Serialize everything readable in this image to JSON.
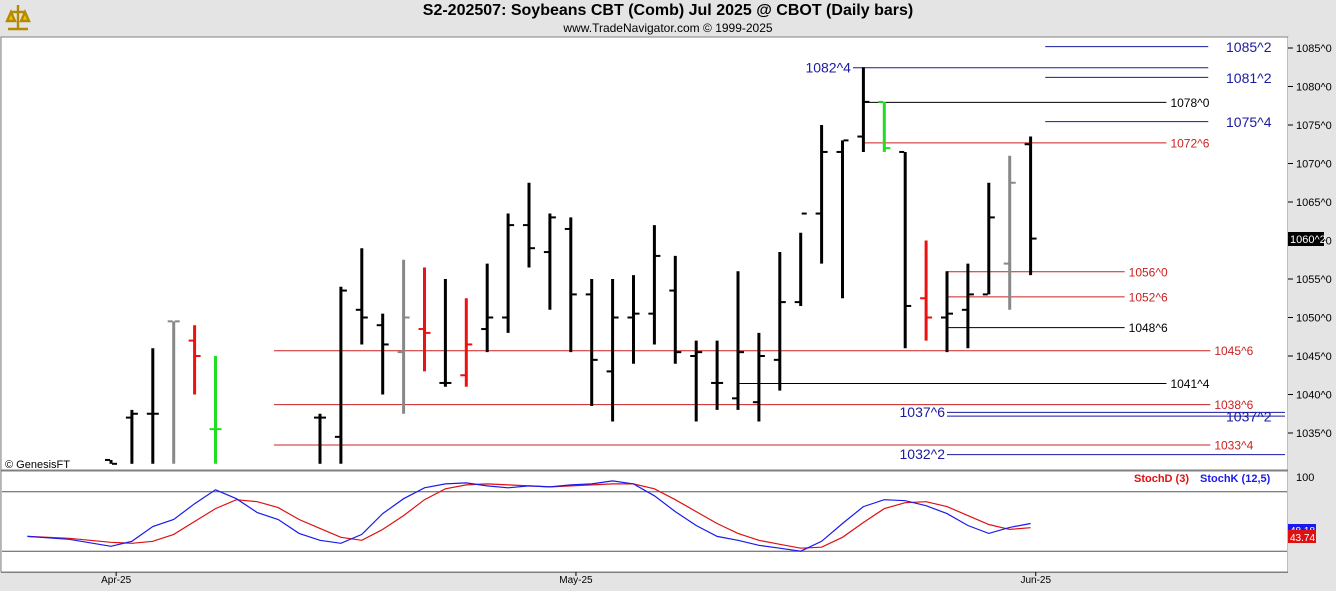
{
  "header": {
    "title": "S2-202507:  Soybeans CBT (Comb) Jul 2025 @ CBOT  (Daily bars)",
    "subtitle": "www.TradeNavigator.com © 1999-2025"
  },
  "colors": {
    "up_bar": "#000000",
    "green_bar": "#22dd22",
    "red_bar": "#ee1111",
    "gray_bar": "#888888",
    "blue_level": "#1a1aa0",
    "red_level": "#cc2020",
    "black_level": "#000000",
    "stoch_d": "#dd1111",
    "stoch_k": "#1a1aee"
  },
  "chart_data": {
    "type": "ohlc",
    "price_axis": {
      "min": 1030.0,
      "max": 1087.0,
      "ticks": [
        {
          "value": 1085.0,
          "label": "1085^0"
        },
        {
          "value": 1080.0,
          "label": "1080^0"
        },
        {
          "value": 1075.0,
          "label": "1075^0"
        },
        {
          "value": 1070.0,
          "label": "1070^0"
        },
        {
          "value": 1065.0,
          "label": "1065^0"
        },
        {
          "value": 1060.0,
          "label": "1060^0"
        },
        {
          "value": 1055.0,
          "label": "1055^0"
        },
        {
          "value": 1050.0,
          "label": "1050^0"
        },
        {
          "value": 1045.0,
          "label": "1045^0"
        },
        {
          "value": 1040.0,
          "label": "1040^0"
        },
        {
          "value": 1035.0,
          "label": "1035^0"
        }
      ],
      "last_price_label": "1060^2",
      "last_price": 1060.25
    },
    "x_labels": [
      {
        "index": 3.5,
        "label": "Apr-25"
      },
      {
        "index": 25.5,
        "label": "May-25"
      },
      {
        "index": 47.5,
        "label": "Jun-25"
      }
    ],
    "bars": [
      {
        "i": 0,
        "o": 1031.5,
        "h": 1031.5,
        "l": 1031.0,
        "c": 1031.0,
        "color": "black"
      },
      {
        "i": 1,
        "o": 1037.0,
        "h": 1038.0,
        "l": 1031.0,
        "c": 1037.5,
        "color": "black"
      },
      {
        "i": 2,
        "o": 1037.5,
        "h": 1046.0,
        "l": 1031.0,
        "c": 1037.5,
        "color": "black"
      },
      {
        "i": 3,
        "o": 1049.5,
        "h": 1049.5,
        "l": 1031.0,
        "c": 1049.5,
        "color": "gray"
      },
      {
        "i": 4,
        "o": 1047.0,
        "h": 1049.0,
        "l": 1040.0,
        "c": 1045.0,
        "color": "red"
      },
      {
        "i": 5,
        "o": 1035.5,
        "h": 1045.0,
        "l": 1031.0,
        "c": 1035.5,
        "color": "green"
      },
      {
        "i": 10,
        "o": 1037.0,
        "h": 1037.5,
        "l": 1031.0,
        "c": 1037.0,
        "color": "black"
      },
      {
        "i": 11,
        "o": 1034.5,
        "h": 1054.0,
        "l": 1031.0,
        "c": 1053.5,
        "color": "black"
      },
      {
        "i": 12,
        "o": 1051.0,
        "h": 1059.0,
        "l": 1046.5,
        "c": 1050.0,
        "color": "black"
      },
      {
        "i": 13,
        "o": 1049.0,
        "h": 1050.5,
        "l": 1040.0,
        "c": 1046.5,
        "color": "black"
      },
      {
        "i": 14,
        "o": 1045.5,
        "h": 1057.5,
        "l": 1037.5,
        "c": 1050.0,
        "color": "gray"
      },
      {
        "i": 15,
        "o": 1048.5,
        "h": 1056.5,
        "l": 1043.0,
        "c": 1048.0,
        "color": "red"
      },
      {
        "i": 16,
        "o": 1041.5,
        "h": 1055.0,
        "l": 1041.0,
        "c": 1041.5,
        "color": "black"
      },
      {
        "i": 17,
        "o": 1042.5,
        "h": 1052.5,
        "l": 1041.0,
        "c": 1046.5,
        "color": "red"
      },
      {
        "i": 18,
        "o": 1048.5,
        "h": 1057.0,
        "l": 1045.5,
        "c": 1050.0,
        "color": "black"
      },
      {
        "i": 19,
        "o": 1050.0,
        "h": 1063.5,
        "l": 1048.0,
        "c": 1062.0,
        "color": "black"
      },
      {
        "i": 20,
        "o": 1062.0,
        "h": 1067.5,
        "l": 1056.5,
        "c": 1059.0,
        "color": "black"
      },
      {
        "i": 21,
        "o": 1058.5,
        "h": 1063.5,
        "l": 1051.0,
        "c": 1063.0,
        "color": "black"
      },
      {
        "i": 22,
        "o": 1061.5,
        "h": 1063.0,
        "l": 1045.5,
        "c": 1053.0,
        "color": "black"
      },
      {
        "i": 23,
        "o": 1053.0,
        "h": 1055.0,
        "l": 1038.5,
        "c": 1044.5,
        "color": "black"
      },
      {
        "i": 24,
        "o": 1043.0,
        "h": 1055.0,
        "l": 1036.5,
        "c": 1050.0,
        "color": "black"
      },
      {
        "i": 25,
        "o": 1050.0,
        "h": 1055.5,
        "l": 1044.0,
        "c": 1050.5,
        "color": "black"
      },
      {
        "i": 26,
        "o": 1050.5,
        "h": 1062.0,
        "l": 1046.5,
        "c": 1058.0,
        "color": "black"
      },
      {
        "i": 27,
        "o": 1053.5,
        "h": 1058.0,
        "l": 1044.0,
        "c": 1045.5,
        "color": "black"
      },
      {
        "i": 28,
        "o": 1045.0,
        "h": 1047.0,
        "l": 1036.5,
        "c": 1045.5,
        "color": "black"
      },
      {
        "i": 29,
        "o": 1041.5,
        "h": 1047.0,
        "l": 1038.0,
        "c": 1041.5,
        "color": "black"
      },
      {
        "i": 30,
        "o": 1039.5,
        "h": 1056.0,
        "l": 1038.0,
        "c": 1045.5,
        "color": "black"
      },
      {
        "i": 31,
        "o": 1039.0,
        "h": 1048.0,
        "l": 1036.5,
        "c": 1045.0,
        "color": "black"
      },
      {
        "i": 32,
        "o": 1044.5,
        "h": 1058.5,
        "l": 1040.5,
        "c": 1052.0,
        "color": "black"
      },
      {
        "i": 33,
        "o": 1052.0,
        "h": 1061.0,
        "l": 1051.5,
        "c": 1063.5,
        "color": "black"
      },
      {
        "i": 34,
        "o": 1063.5,
        "h": 1075.0,
        "l": 1057.0,
        "c": 1071.5,
        "color": "black"
      },
      {
        "i": 35,
        "o": 1071.5,
        "h": 1073.0,
        "l": 1052.5,
        "c": 1073.0,
        "color": "black"
      },
      {
        "i": 36,
        "o": 1073.5,
        "h": 1082.5,
        "l": 1071.5,
        "c": 1078.0,
        "color": "black"
      },
      {
        "i": 37,
        "o": 1078.0,
        "h": 1078.0,
        "l": 1071.5,
        "c": 1072.0,
        "color": "green"
      },
      {
        "i": 38,
        "o": 1071.5,
        "h": 1071.5,
        "l": 1046.0,
        "c": 1051.5,
        "color": "black"
      },
      {
        "i": 39,
        "o": 1052.5,
        "h": 1060.0,
        "l": 1047.0,
        "c": 1050.0,
        "color": "red"
      },
      {
        "i": 40,
        "o": 1050.0,
        "h": 1056.0,
        "l": 1045.5,
        "c": 1050.5,
        "color": "black"
      },
      {
        "i": 41,
        "o": 1051.0,
        "h": 1057.0,
        "l": 1046.0,
        "c": 1053.0,
        "color": "black"
      },
      {
        "i": 42,
        "o": 1053.0,
        "h": 1067.5,
        "l": 1053.0,
        "c": 1063.0,
        "color": "black"
      },
      {
        "i": 43,
        "o": 1057.0,
        "h": 1071.0,
        "l": 1051.0,
        "c": 1067.5,
        "color": "gray"
      },
      {
        "i": 44,
        "o": 1072.5,
        "h": 1073.5,
        "l": 1055.5,
        "c": 1060.25,
        "color": "black"
      }
    ],
    "levels": [
      {
        "value": 1085.25,
        "label": "1085^2",
        "color": "blue",
        "x0": 44.7,
        "x1": 52.5,
        "label_side": "right-far"
      },
      {
        "value": 1082.5,
        "label": "1082^4",
        "color": "blue",
        "x0": 35.5,
        "x1": 52.5,
        "label_side": "left"
      },
      {
        "value": 1081.25,
        "label": "1081^2",
        "color": "blue",
        "x0": 44.7,
        "x1": 52.5,
        "label_side": "right-far"
      },
      {
        "value": 1078.0,
        "label": "1078^0",
        "color": "black",
        "x0": 36.0,
        "x1": 50.5,
        "label_side": "right"
      },
      {
        "value": 1075.5,
        "label": "1075^4",
        "color": "blue",
        "x0": 44.7,
        "x1": 52.5,
        "label_side": "right-far"
      },
      {
        "value": 1072.75,
        "label": "1072^6",
        "color": "red",
        "x0": 36.0,
        "x1": 50.5,
        "label_side": "right"
      },
      {
        "value": 1056.0,
        "label": "1056^0",
        "color": "red",
        "x0": 40.0,
        "x1": 48.5,
        "label_side": "right"
      },
      {
        "value": 1052.75,
        "label": "1052^6",
        "color": "red",
        "x0": 40.0,
        "x1": 48.5,
        "label_side": "right"
      },
      {
        "value": 1048.75,
        "label": "1048^6",
        "color": "black",
        "x0": 40.0,
        "x1": 48.5,
        "label_side": "right"
      },
      {
        "value": 1045.75,
        "label": "1045^6",
        "color": "red",
        "x0": 7.8,
        "x1": 52.6,
        "label_side": "right"
      },
      {
        "value": 1041.5,
        "label": "1041^4",
        "color": "black",
        "x0": 30.0,
        "x1": 50.5,
        "label_side": "right"
      },
      {
        "value": 1038.75,
        "label": "1038^6",
        "color": "red",
        "x0": 7.8,
        "x1": 52.6,
        "label_side": "right"
      },
      {
        "value": 1037.75,
        "label": "1037^6",
        "color": "blue",
        "x0": 40.0,
        "x1": 60.0,
        "label_side": "left"
      },
      {
        "value": 1037.25,
        "label": "1037^2",
        "color": "blue",
        "x0": 40.0,
        "x1": 60.0,
        "label_side": "right-far"
      },
      {
        "value": 1033.5,
        "label": "1033^4",
        "color": "red",
        "x0": 7.8,
        "x1": 52.6,
        "label_side": "right"
      },
      {
        "value": 1032.25,
        "label": "1032^2",
        "color": "blue",
        "x0": 40.0,
        "x1": 60.0,
        "label_side": "left"
      }
    ],
    "stochastic": {
      "axis_label": "100",
      "d_label": "StochD (3)",
      "k_label": "StochK (12,5)",
      "k_last_label": "48.18",
      "d_last_label": "43.74",
      "upper_line": 80,
      "lower_line": 20,
      "k": [
        {
          "i": -4,
          "v": 35
        },
        {
          "i": -2,
          "v": 32
        },
        {
          "i": 0,
          "v": 25
        },
        {
          "i": 1,
          "v": 30
        },
        {
          "i": 2,
          "v": 45
        },
        {
          "i": 3,
          "v": 52
        },
        {
          "i": 4,
          "v": 68
        },
        {
          "i": 5,
          "v": 82
        },
        {
          "i": 6,
          "v": 73
        },
        {
          "i": 7,
          "v": 59
        },
        {
          "i": 8,
          "v": 52
        },
        {
          "i": 9,
          "v": 38
        },
        {
          "i": 10,
          "v": 31
        },
        {
          "i": 11,
          "v": 28
        },
        {
          "i": 12,
          "v": 37
        },
        {
          "i": 13,
          "v": 58
        },
        {
          "i": 14,
          "v": 73
        },
        {
          "i": 15,
          "v": 84
        },
        {
          "i": 16,
          "v": 88
        },
        {
          "i": 17,
          "v": 89
        },
        {
          "i": 18,
          "v": 86
        },
        {
          "i": 19,
          "v": 84
        },
        {
          "i": 20,
          "v": 86
        },
        {
          "i": 21,
          "v": 85
        },
        {
          "i": 22,
          "v": 87
        },
        {
          "i": 23,
          "v": 88
        },
        {
          "i": 24,
          "v": 91
        },
        {
          "i": 25,
          "v": 88
        },
        {
          "i": 26,
          "v": 76
        },
        {
          "i": 27,
          "v": 60
        },
        {
          "i": 28,
          "v": 46
        },
        {
          "i": 29,
          "v": 35
        },
        {
          "i": 30,
          "v": 31
        },
        {
          "i": 31,
          "v": 26
        },
        {
          "i": 32,
          "v": 23
        },
        {
          "i": 33,
          "v": 20
        },
        {
          "i": 34,
          "v": 30
        },
        {
          "i": 35,
          "v": 48
        },
        {
          "i": 36,
          "v": 65
        },
        {
          "i": 37,
          "v": 72
        },
        {
          "i": 38,
          "v": 71
        },
        {
          "i": 39,
          "v": 66
        },
        {
          "i": 40,
          "v": 58
        },
        {
          "i": 41,
          "v": 46
        },
        {
          "i": 42,
          "v": 38
        },
        {
          "i": 43,
          "v": 44
        },
        {
          "i": 44,
          "v": 48
        }
      ],
      "d": [
        {
          "i": -4,
          "v": 35
        },
        {
          "i": -2,
          "v": 33
        },
        {
          "i": 0,
          "v": 29
        },
        {
          "i": 1,
          "v": 28
        },
        {
          "i": 2,
          "v": 30
        },
        {
          "i": 3,
          "v": 37
        },
        {
          "i": 4,
          "v": 50
        },
        {
          "i": 5,
          "v": 63
        },
        {
          "i": 6,
          "v": 72
        },
        {
          "i": 7,
          "v": 70
        },
        {
          "i": 8,
          "v": 64
        },
        {
          "i": 9,
          "v": 52
        },
        {
          "i": 10,
          "v": 43
        },
        {
          "i": 11,
          "v": 34
        },
        {
          "i": 12,
          "v": 31
        },
        {
          "i": 13,
          "v": 42
        },
        {
          "i": 14,
          "v": 56
        },
        {
          "i": 15,
          "v": 72
        },
        {
          "i": 16,
          "v": 83
        },
        {
          "i": 17,
          "v": 87
        },
        {
          "i": 18,
          "v": 88
        },
        {
          "i": 19,
          "v": 87
        },
        {
          "i": 20,
          "v": 86
        },
        {
          "i": 21,
          "v": 85
        },
        {
          "i": 22,
          "v": 86
        },
        {
          "i": 23,
          "v": 87
        },
        {
          "i": 24,
          "v": 88
        },
        {
          "i": 25,
          "v": 88
        },
        {
          "i": 26,
          "v": 83
        },
        {
          "i": 27,
          "v": 72
        },
        {
          "i": 28,
          "v": 60
        },
        {
          "i": 29,
          "v": 48
        },
        {
          "i": 30,
          "v": 38
        },
        {
          "i": 31,
          "v": 31
        },
        {
          "i": 32,
          "v": 27
        },
        {
          "i": 33,
          "v": 23
        },
        {
          "i": 34,
          "v": 24
        },
        {
          "i": 35,
          "v": 34
        },
        {
          "i": 36,
          "v": 49
        },
        {
          "i": 37,
          "v": 63
        },
        {
          "i": 38,
          "v": 69
        },
        {
          "i": 39,
          "v": 70
        },
        {
          "i": 40,
          "v": 65
        },
        {
          "i": 41,
          "v": 56
        },
        {
          "i": 42,
          "v": 47
        },
        {
          "i": 43,
          "v": 42
        },
        {
          "i": 44,
          "v": 43.74
        }
      ]
    }
  },
  "watermark": "© GenesisFT"
}
